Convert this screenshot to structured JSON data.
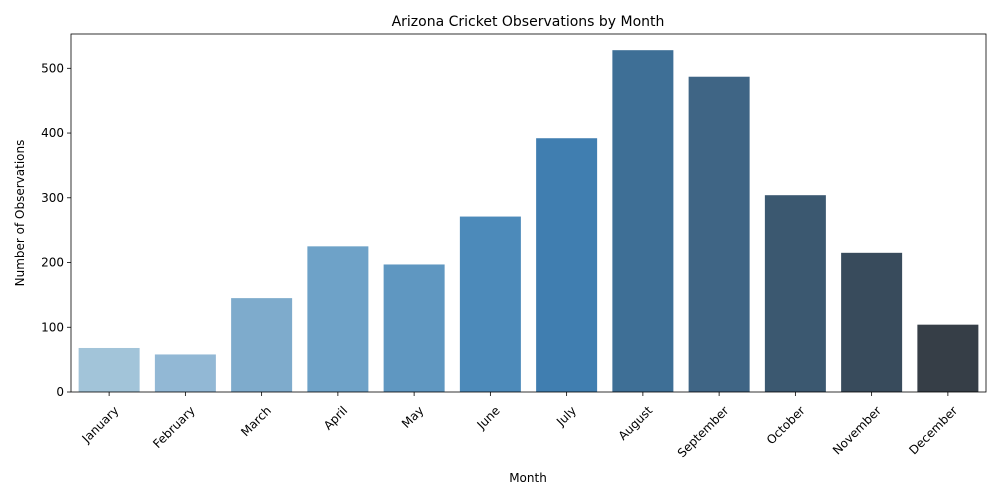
{
  "chart_data": {
    "type": "bar",
    "title": "Arizona Cricket Observations by Month",
    "xlabel": "Month",
    "ylabel": "Number of Observations",
    "categories": [
      "January",
      "February",
      "March",
      "April",
      "May",
      "June",
      "July",
      "August",
      "September",
      "October",
      "November",
      "December"
    ],
    "values": [
      68,
      58,
      145,
      225,
      197,
      271,
      392,
      528,
      487,
      304,
      215,
      104
    ],
    "ylim": [
      0,
      553
    ],
    "yticks": [
      0,
      100,
      200,
      300,
      400,
      500
    ],
    "grid": false,
    "colors": [
      "#a2c4d9",
      "#92b8d5",
      "#7eabcc",
      "#6ea2c8",
      "#5f97c1",
      "#4c8aba",
      "#407eb0",
      "#3e6f96",
      "#3f6585",
      "#3b5870",
      "#384b5c",
      "#363e47"
    ]
  }
}
